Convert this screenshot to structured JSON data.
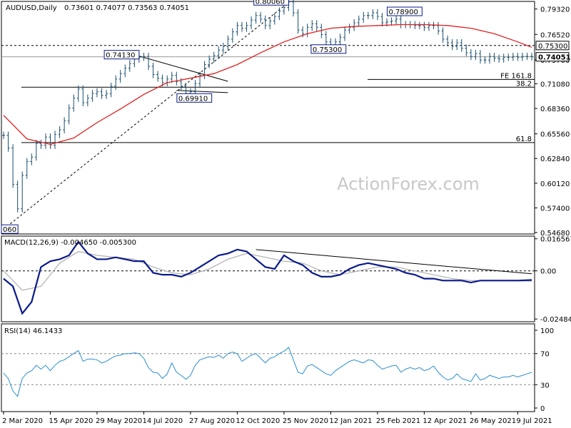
{
  "header": {
    "symbol": "AUDUSD,Daily",
    "ohlc": "0.73601 0.74077 0.73563 0.74051"
  },
  "watermark": "ActionForex.com",
  "colors": {
    "price": "#1a4f6e",
    "ma": "#e02020",
    "macd": "#0a1a8c",
    "signal": "#b0b0b0",
    "rsi": "#2a8fd0",
    "level_box": "#0a1a8c"
  },
  "chart_data": [
    {
      "type": "line",
      "panel": "price",
      "y_ticks": [
        "0.79320",
        "0.76520",
        "0.73700",
        "0.71080",
        "0.68360",
        "0.65560",
        "0.62840",
        "0.60120",
        "0.57400",
        "0.54680"
      ],
      "ylim": [
        0.5468,
        0.8
      ],
      "x_labels": [
        "2 Mar 2020",
        "15 Apr 2020",
        "29 May 2020",
        "14 Jul 2020",
        "27 Aug 2020",
        "12 Oct 2020",
        "25 Nov 2020",
        "12 Jan 2021",
        "25 Feb 2021",
        "12 Apr 2021",
        "26 May 2021",
        "9 Jul 2021"
      ],
      "x_index": [
        0,
        10,
        20,
        30,
        40,
        50,
        60,
        70,
        80,
        90,
        100,
        110
      ],
      "series": [
        {
          "role": "close",
          "x": [
            0,
            1,
            2,
            3,
            4,
            5,
            6,
            7,
            8,
            9,
            10,
            11,
            12,
            13,
            14,
            15,
            16,
            17,
            18,
            19,
            20,
            21,
            22,
            23,
            24,
            25,
            26,
            27,
            28,
            29,
            30,
            31,
            32,
            33,
            34,
            35,
            36,
            37,
            38,
            39,
            40,
            41,
            42,
            43,
            44,
            45,
            46,
            47,
            48,
            49,
            50,
            51,
            52,
            53,
            54,
            55,
            56,
            57,
            58,
            59,
            60,
            61,
            62,
            63,
            64,
            65,
            66,
            67,
            68,
            69,
            70,
            71,
            72,
            73,
            74,
            75,
            76,
            77,
            78,
            79,
            80,
            81,
            82,
            83,
            84,
            85,
            86,
            87,
            88,
            89,
            90,
            91,
            92,
            93,
            94,
            95,
            96,
            97,
            98,
            99,
            100,
            101,
            102,
            103,
            104,
            105,
            106,
            107,
            108,
            109,
            110,
            111,
            112,
            113
          ],
          "values": [
            0.654,
            0.64,
            0.6,
            0.573,
            0.61,
            0.625,
            0.63,
            0.645,
            0.643,
            0.652,
            0.643,
            0.655,
            0.66,
            0.67,
            0.684,
            0.695,
            0.705,
            0.69,
            0.695,
            0.7,
            0.702,
            0.698,
            0.7,
            0.708,
            0.716,
            0.722,
            0.728,
            0.733,
            0.738,
            0.74,
            0.741,
            0.73,
            0.721,
            0.717,
            0.712,
            0.716,
            0.72,
            0.713,
            0.708,
            0.7,
            0.702,
            0.711,
            0.72,
            0.732,
            0.738,
            0.742,
            0.748,
            0.752,
            0.76,
            0.768,
            0.775,
            0.772,
            0.775,
            0.781,
            0.786,
            0.782,
            0.775,
            0.78,
            0.785,
            0.791,
            0.795,
            0.801,
            0.789,
            0.77,
            0.766,
            0.773,
            0.777,
            0.773,
            0.765,
            0.757,
            0.753,
            0.757,
            0.762,
            0.77,
            0.773,
            0.778,
            0.782,
            0.786,
            0.786,
            0.789,
            0.785,
            0.778,
            0.779,
            0.78,
            0.782,
            0.776,
            0.776,
            0.776,
            0.775,
            0.775,
            0.773,
            0.775,
            0.775,
            0.769,
            0.76,
            0.756,
            0.752,
            0.756,
            0.75,
            0.745,
            0.741,
            0.744,
            0.737,
            0.737,
            0.741,
            0.739,
            0.738,
            0.74,
            0.74,
            0.741,
            0.74,
            0.741,
            0.741,
            0.7405
          ]
        },
        {
          "role": "moving_average",
          "x": [
            0,
            5,
            10,
            15,
            20,
            25,
            30,
            35,
            40,
            45,
            50,
            55,
            60,
            65,
            70,
            75,
            80,
            85,
            90,
            95,
            100,
            105,
            110,
            113
          ],
          "values": [
            0.676,
            0.65,
            0.644,
            0.651,
            0.668,
            0.683,
            0.699,
            0.712,
            0.717,
            0.722,
            0.732,
            0.745,
            0.757,
            0.766,
            0.772,
            0.774,
            0.775,
            0.776,
            0.776,
            0.775,
            0.772,
            0.766,
            0.757,
            0.751
          ]
        }
      ],
      "horizontal_lines": [
        {
          "value": 0.753,
          "style": "dashed"
        },
        {
          "value": 0.7405,
          "style": "solid-grey"
        },
        {
          "value": 0.7156,
          "style": "solid",
          "label": "FE 161.8"
        },
        {
          "value": 0.707,
          "style": "solid",
          "label": "38.2"
        },
        {
          "value": 0.646,
          "style": "solid",
          "label": "61.8"
        }
      ],
      "annotations": [
        {
          "label": "0.80060",
          "x": 61,
          "y": 0.8006
        },
        {
          "label": "0.78900",
          "x": 88,
          "y": 0.789
        },
        {
          "label": "0.75300",
          "x": 68,
          "y": 0.753
        },
        {
          "label": "0.74130",
          "x": 29,
          "y": 0.7413
        },
        {
          "label": "0.69910",
          "x": 38,
          "y": 0.6991
        },
        {
          "label": "060",
          "x": 0,
          "y": 0.5506
        }
      ],
      "price_tags": [
        "0.75300",
        "0.74051"
      ]
    },
    {
      "type": "line",
      "panel": "macd",
      "title": "MACD(12,26,9) -0.004650 -0.005300",
      "y_ticks": [
        "0.016567",
        "0.00",
        "-0.02484"
      ],
      "ylim": [
        -0.0255,
        0.0172
      ],
      "series": [
        {
          "role": "macd",
          "x": [
            0,
            2,
            4,
            6,
            8,
            10,
            12,
            14,
            16,
            18,
            20,
            22,
            24,
            26,
            28,
            30,
            32,
            34,
            36,
            38,
            40,
            42,
            44,
            46,
            48,
            50,
            52,
            54,
            56,
            58,
            60,
            62,
            64,
            66,
            68,
            70,
            72,
            74,
            76,
            78,
            80,
            82,
            84,
            86,
            88,
            90,
            92,
            94,
            96,
            98,
            100,
            102,
            104,
            106,
            108,
            110,
            113
          ],
          "values": [
            -0.004,
            -0.008,
            -0.022,
            -0.016,
            0.002,
            0.005,
            0.006,
            0.008,
            0.015,
            0.009,
            0.006,
            0.006,
            0.007,
            0.006,
            0.005,
            0.005,
            -0.001,
            -0.002,
            -0.002,
            -0.003,
            -0.001,
            0.002,
            0.005,
            0.008,
            0.009,
            0.011,
            0.01,
            0.006,
            0.002,
            0.001,
            0.008,
            0.005,
            0.003,
            -0.001,
            -0.003,
            -0.003,
            -0.002,
            0.001,
            0.003,
            0.004,
            0.003,
            0.002,
            0.001,
            -0.001,
            -0.002,
            -0.004,
            -0.004,
            -0.005,
            -0.005,
            -0.005,
            -0.006,
            -0.005,
            -0.005,
            -0.005,
            -0.005,
            -0.005,
            -0.0047
          ]
        },
        {
          "role": "signal",
          "x": [
            0,
            4,
            8,
            12,
            16,
            20,
            24,
            28,
            32,
            36,
            40,
            44,
            48,
            52,
            56,
            60,
            64,
            68,
            72,
            76,
            80,
            84,
            88,
            92,
            96,
            100,
            104,
            108,
            113
          ],
          "values": [
            0.0,
            -0.01,
            -0.008,
            0.004,
            0.01,
            0.008,
            0.007,
            0.006,
            0.002,
            -0.001,
            -0.002,
            0.001,
            0.006,
            0.009,
            0.007,
            0.005,
            0.004,
            0.0,
            -0.002,
            0.0,
            0.002,
            0.002,
            0.0,
            -0.002,
            -0.004,
            -0.005,
            -0.005,
            -0.005,
            -0.0053
          ]
        }
      ]
    },
    {
      "type": "line",
      "panel": "rsi",
      "title": "RSI(14) 46.1433",
      "y_ticks": [
        "100",
        "70",
        "30",
        "0"
      ],
      "ylim": [
        0,
        100
      ],
      "levels": [
        70,
        30
      ],
      "series": [
        {
          "role": "rsi",
          "x": [
            0,
            1,
            2,
            3,
            4,
            5,
            6,
            7,
            8,
            9,
            10,
            11,
            12,
            13,
            14,
            15,
            16,
            17,
            18,
            19,
            20,
            21,
            22,
            23,
            24,
            25,
            26,
            27,
            28,
            29,
            30,
            31,
            32,
            33,
            34,
            35,
            36,
            37,
            38,
            39,
            40,
            41,
            42,
            43,
            44,
            45,
            46,
            47,
            48,
            49,
            50,
            51,
            52,
            53,
            54,
            55,
            56,
            57,
            58,
            59,
            60,
            61,
            62,
            63,
            64,
            65,
            66,
            67,
            68,
            69,
            70,
            71,
            72,
            73,
            74,
            75,
            76,
            77,
            78,
            79,
            80,
            81,
            82,
            83,
            84,
            85,
            86,
            87,
            88,
            89,
            90,
            91,
            92,
            93,
            94,
            95,
            96,
            97,
            98,
            99,
            100,
            101,
            102,
            103,
            104,
            105,
            106,
            107,
            108,
            109,
            110,
            111,
            112,
            113
          ],
          "values": [
            45,
            38,
            22,
            15,
            38,
            45,
            48,
            55,
            50,
            55,
            48,
            55,
            60,
            62,
            66,
            70,
            74,
            60,
            63,
            63,
            62,
            58,
            60,
            64,
            67,
            68,
            70,
            70,
            71,
            70,
            64,
            52,
            46,
            45,
            38,
            44,
            58,
            46,
            42,
            37,
            42,
            55,
            62,
            64,
            66,
            65,
            68,
            64,
            70,
            72,
            70,
            60,
            64,
            68,
            70,
            64,
            58,
            64,
            66,
            70,
            73,
            78,
            62,
            46,
            44,
            54,
            56,
            52,
            48,
            44,
            42,
            48,
            52,
            56,
            60,
            62,
            60,
            58,
            62,
            61,
            55,
            50,
            52,
            54,
            55,
            46,
            50,
            52,
            50,
            52,
            48,
            50,
            54,
            46,
            40,
            36,
            38,
            44,
            38,
            36,
            34,
            44,
            36,
            38,
            42,
            40,
            38,
            40,
            40,
            42,
            40,
            42,
            44,
            46
          ]
        }
      ]
    }
  ]
}
